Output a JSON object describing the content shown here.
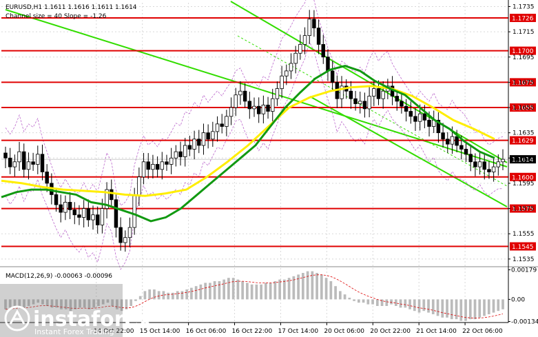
{
  "chart_data": {
    "type": "candlestick",
    "symbol_line": "EURUSD,H1  1.1611 1.1616 1.1611 1.1614",
    "channel_line": "Channel size = 40 Slope = -1.26",
    "price_ticks": [
      "1.1735",
      "1.1715",
      "1.1695",
      "1.1675",
      "1.1655",
      "1.1635",
      "1.1615",
      "1.1595",
      "1.1575",
      "1.1555",
      "1.1535"
    ],
    "ylim": [
      1.153,
      1.1738
    ],
    "levels": [
      {
        "value": 1.1726,
        "label": "1.1726"
      },
      {
        "value": 1.17,
        "label": "1.1700"
      },
      {
        "value": 1.1675,
        "label": "1.1675"
      },
      {
        "value": 1.1655,
        "label": "1.1655"
      },
      {
        "value": 1.1629,
        "label": "1.1629"
      },
      {
        "value": 1.16,
        "label": "1.1600"
      },
      {
        "value": 1.1575,
        "label": "1.1575"
      },
      {
        "value": 1.1545,
        "label": "1.1545"
      }
    ],
    "current_price": {
      "value": 1.1614,
      "label": "1.1614"
    },
    "time_ticks": [
      "14 Oct 22:00",
      "15 Oct 14:00",
      "16 Oct 06:00",
      "16 Oct 22:00",
      "17 Oct 14:00",
      "20 Oct 06:00",
      "20 Oct 22:00",
      "21 Oct 14:00",
      "22 Oct 06:00"
    ],
    "close": [
      1.1615,
      1.1608,
      1.1612,
      1.162,
      1.1606,
      1.1612,
      1.161,
      1.1618,
      1.1604,
      1.1595,
      1.1586,
      1.1578,
      1.1572,
      1.158,
      1.1574,
      1.157,
      1.1568,
      1.1575,
      1.1566,
      1.157,
      1.1562,
      1.1575,
      1.159,
      1.1582,
      1.156,
      1.1548,
      1.1552,
      1.156,
      1.1585,
      1.16,
      1.1612,
      1.1606,
      1.161,
      1.1606,
      1.1612,
      1.161,
      1.1615,
      1.162,
      1.1616,
      1.1625,
      1.1622,
      1.163,
      1.1625,
      1.1635,
      1.163,
      1.1636,
      1.1642,
      1.164,
      1.1648,
      1.1655,
      1.1665,
      1.1668,
      1.166,
      1.1654,
      1.1656,
      1.165,
      1.1657,
      1.1652,
      1.1662,
      1.167,
      1.168,
      1.1684,
      1.169,
      1.1698,
      1.1705,
      1.1712,
      1.1725,
      1.1718,
      1.1705,
      1.1695,
      1.1684,
      1.1675,
      1.1662,
      1.1672,
      1.1668,
      1.1662,
      1.1658,
      1.166,
      1.1654,
      1.1664,
      1.167,
      1.1662,
      1.1668,
      1.1672,
      1.1664,
      1.166,
      1.1656,
      1.1652,
      1.1648,
      1.1644,
      1.165,
      1.1645,
      1.164,
      1.1645,
      1.1635,
      1.163,
      1.1626,
      1.1632,
      1.1625,
      1.1622,
      1.1618,
      1.1612,
      1.1608,
      1.1612,
      1.1606,
      1.1604,
      1.1608,
      1.1612,
      1.1614
    ],
    "sma_green": [
      1.1584,
      1.1588,
      1.159,
      1.159,
      1.1588,
      1.1586,
      1.158,
      1.1578,
      1.1574,
      1.157,
      1.1565,
      1.1568,
      1.1575,
      1.1585,
      1.1595,
      1.1605,
      1.1615,
      1.1625,
      1.164,
      1.1655,
      1.1667,
      1.1678,
      1.1685,
      1.1688,
      1.1684,
      1.1676,
      1.167,
      1.1665,
      1.1655,
      1.1645,
      1.1638,
      1.1628,
      1.162,
      1.1615
    ],
    "sma_yellow": [
      1.1597,
      1.1595,
      1.1592,
      1.159,
      1.1589,
      1.1588,
      1.1586,
      1.1585,
      1.1587,
      1.159,
      1.16,
      1.1612,
      1.1625,
      1.164,
      1.1655,
      1.1663,
      1.1668,
      1.1671,
      1.1672,
      1.167,
      1.1664,
      1.1655,
      1.1645,
      1.1638,
      1.163
    ],
    "macd": {
      "label": "MACD(12,26,9) -0.00063 -0.00096",
      "ticks": [
        "0.00179",
        "0.00",
        "-0.00134"
      ],
      "ylim": [
        -0.0014,
        0.00185
      ],
      "hist": [
        -0.0006,
        -0.0005,
        -0.0004,
        -0.0004,
        -0.0005,
        -0.0004,
        -0.0003,
        -0.0002,
        -0.0003,
        -0.0004,
        -0.0005,
        -0.0005,
        -0.0006,
        -0.0006,
        -0.0007,
        -0.0006,
        -0.0005,
        -0.0005,
        -0.0006,
        -0.0005,
        -0.0004,
        -0.0003,
        -0.0002,
        -0.0004,
        -0.0006,
        -0.0007,
        -0.0006,
        -0.0004,
        -0.0001,
        0.0002,
        0.0005,
        0.0006,
        0.0006,
        0.0005,
        0.0005,
        0.0004,
        0.0004,
        0.0005,
        0.0005,
        0.0006,
        0.0007,
        0.0008,
        0.0009,
        0.001,
        0.001,
        0.0011,
        0.0011,
        0.0012,
        0.0013,
        0.0013,
        0.0012,
        0.0011,
        0.001,
        0.0009,
        0.0009,
        0.0009,
        0.001,
        0.001,
        0.0011,
        0.0012,
        0.0012,
        0.0013,
        0.0014,
        0.0015,
        0.0016,
        0.0017,
        0.0017,
        0.0016,
        0.0015,
        0.0013,
        0.0011,
        0.0008,
        0.0005,
        0.0003,
        0.0001,
        -0.0001,
        -0.0002,
        -0.0002,
        -0.0003,
        -0.0003,
        -0.0004,
        -0.0004,
        -0.0004,
        -0.0003,
        -0.0004,
        -0.0005,
        -0.0005,
        -0.0006,
        -0.0007,
        -0.0008,
        -0.0007,
        -0.0008,
        -0.0009,
        -0.001,
        -0.0011,
        -0.0011,
        -0.0012,
        -0.0012,
        -0.0013,
        -0.0013,
        -0.0012,
        -0.0012,
        -0.0011,
        -0.001,
        -0.0009,
        -0.0008,
        -0.0007,
        -0.0006
      ]
    }
  },
  "watermark": {
    "brand": "instaforex",
    "tagline": "Instant Forex Trading"
  },
  "colors": {
    "level": "#e00000",
    "green_channel": "#33dd00",
    "sma_green": "#119911",
    "sma_yellow": "#ffee00",
    "band": "#bb66cc"
  }
}
